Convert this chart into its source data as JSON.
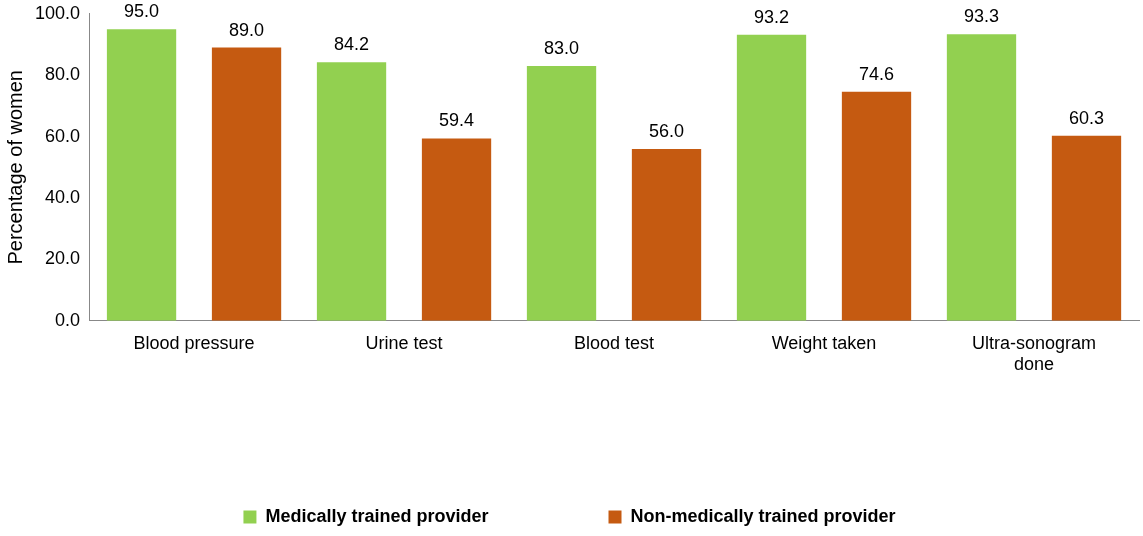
{
  "chart_data": {
    "type": "bar",
    "ylabel": "Percentage of women",
    "categories": [
      "Blood pressure",
      "Urine test",
      "Blood test",
      "Weight taken",
      "Ultra-sonogram done"
    ],
    "series": [
      {
        "name": "Medically trained provider",
        "color": "#92d050",
        "values": [
          95.0,
          84.2,
          83.0,
          93.2,
          93.3
        ],
        "value_labels": [
          "95.0",
          "84.2",
          "83.0",
          "93.2",
          "93.3"
        ]
      },
      {
        "name": "Non-medically trained provider",
        "color": "#c55a11",
        "values": [
          89.0,
          59.4,
          56.0,
          74.6,
          60.3
        ],
        "value_labels": [
          "89.0",
          "59.4",
          "56.0",
          "74.6",
          "60.3"
        ]
      }
    ],
    "ylim": [
      0,
      100
    ],
    "yticks": [
      {
        "value": 0,
        "label": "0.0"
      },
      {
        "value": 20,
        "label": "20.0"
      },
      {
        "value": 40,
        "label": "40.0"
      },
      {
        "value": 60,
        "label": "60.0"
      },
      {
        "value": 80,
        "label": "80.0"
      },
      {
        "value": 100,
        "label": "100.0"
      }
    ],
    "grid": false,
    "legend": "bottom"
  }
}
